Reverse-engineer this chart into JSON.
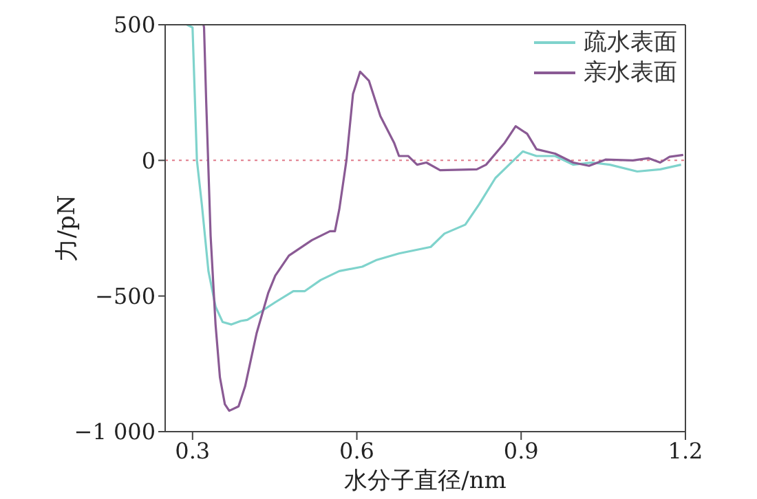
{
  "chart_data": {
    "type": "line",
    "xlabel": "水分子直径/nm",
    "ylabel": "力/pN",
    "xlim": [
      0.25,
      1.2
    ],
    "xticks": [
      0.3,
      0.6,
      0.9,
      1.2
    ],
    "ylim": [
      -1000,
      500
    ],
    "yticks": [
      {
        "value": 500,
        "label": "500"
      },
      {
        "value": 0,
        "label": "0"
      },
      {
        "value": -500,
        "label": "−500"
      },
      {
        "value": -1000,
        "label": "−1 000"
      }
    ],
    "legend": "top right",
    "line_style": "solid",
    "marker": "none",
    "ref_lines": [
      {
        "axis": "y",
        "value": 0,
        "color": "#e07a8a",
        "line_style": "dotted"
      }
    ],
    "series": [
      {
        "name": "疏水表面",
        "color": "#7fd3cc",
        "x": [
          0.29,
          0.3,
          0.308,
          0.317,
          0.329,
          0.342,
          0.355,
          0.371,
          0.388,
          0.4,
          0.426,
          0.451,
          0.484,
          0.505,
          0.534,
          0.568,
          0.61,
          0.635,
          0.677,
          0.735,
          0.76,
          0.798,
          0.823,
          0.853,
          0.878,
          0.903,
          0.928,
          0.962,
          0.995,
          1.029,
          1.062,
          1.112,
          1.154,
          1.192
        ],
        "values": [
          500,
          490,
          0,
          -163,
          -408,
          -539,
          -596,
          -605,
          -592,
          -588,
          -556,
          -523,
          -482,
          -482,
          -441,
          -408,
          -392,
          -368,
          -343,
          -319,
          -270,
          -237,
          -163,
          -65,
          -16,
          33,
          16,
          16,
          -16,
          -8,
          -16,
          -41,
          -33,
          -16
        ]
      },
      {
        "name": "亲水表面",
        "color": "#8a5a94",
        "x": [
          0.32,
          0.321,
          0.325,
          0.333,
          0.342,
          0.35,
          0.359,
          0.367,
          0.384,
          0.396,
          0.417,
          0.438,
          0.451,
          0.476,
          0.518,
          0.551,
          0.56,
          0.568,
          0.581,
          0.593,
          0.606,
          0.622,
          0.643,
          0.668,
          0.677,
          0.694,
          0.71,
          0.727,
          0.752,
          0.819,
          0.836,
          0.87,
          0.89,
          0.911,
          0.928,
          0.962,
          0.995,
          1.024,
          1.054,
          1.104,
          1.133,
          1.154,
          1.171,
          1.196
        ],
        "values": [
          500,
          490,
          212,
          -278,
          -605,
          -800,
          -899,
          -923,
          -907,
          -833,
          -637,
          -490,
          -425,
          -351,
          -294,
          -261,
          -261,
          -180,
          0,
          245,
          327,
          294,
          163,
          65,
          16,
          16,
          -16,
          -8,
          -36,
          -33,
          -16,
          65,
          126,
          98,
          41,
          25,
          -8,
          -20,
          3,
          0,
          8,
          -8,
          13,
          20
        ]
      }
    ]
  }
}
